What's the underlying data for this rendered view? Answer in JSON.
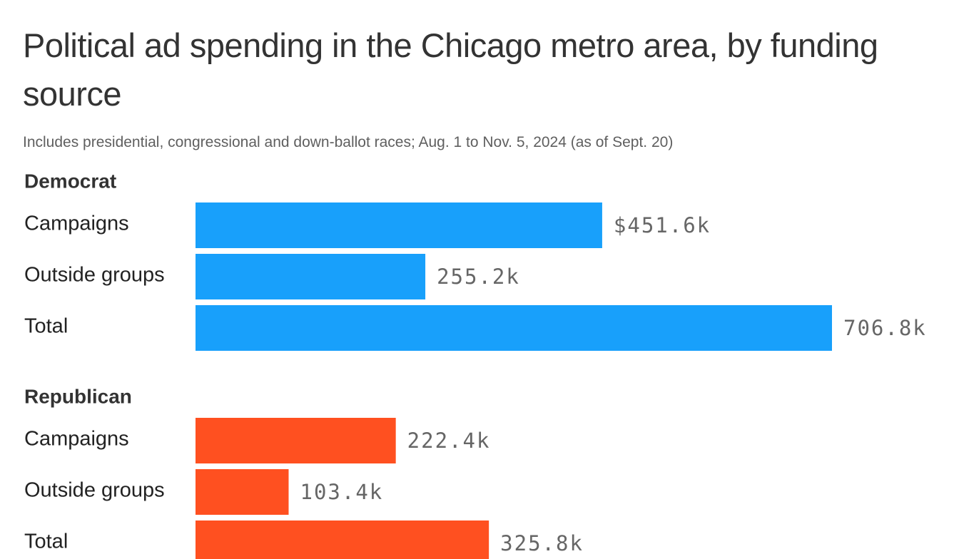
{
  "chart_data": {
    "type": "bar",
    "title": "Political ad spending in the Chicago metro area, by funding source",
    "subtitle": "Includes presidential, congressional and down-ballot races; Aug. 1 to Nov. 5, 2024 (as of Sept. 20)",
    "panels": [
      {
        "name": "Democrat",
        "color": "#18a0fb",
        "categories": [
          "Campaigns",
          "Outside groups",
          "Total"
        ],
        "values": [
          451.6,
          255.2,
          706.8
        ],
        "value_labels": [
          "$451.6k",
          "255.2k",
          "706.8k"
        ]
      },
      {
        "name": "Republican",
        "color": "#ff5020",
        "categories": [
          "Campaigns",
          "Outside groups",
          "Total"
        ],
        "values": [
          222.4,
          103.4,
          325.8
        ],
        "value_labels": [
          "222.4k",
          "103.4k",
          "325.8k"
        ]
      }
    ]
  }
}
